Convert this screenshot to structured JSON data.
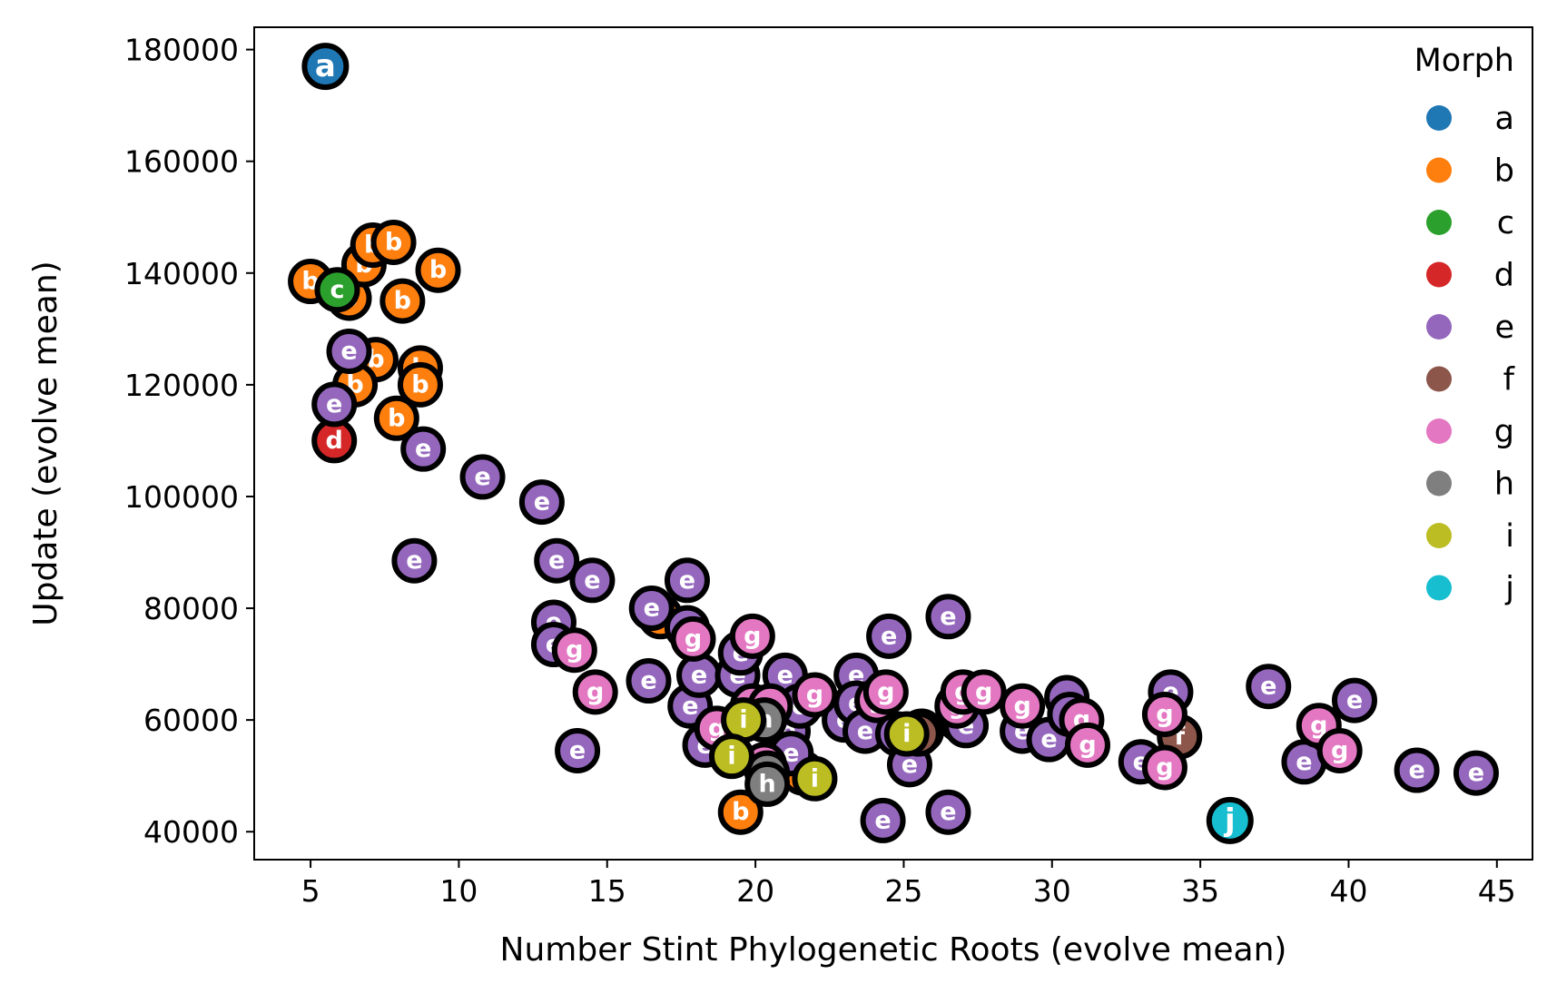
{
  "chart_data": {
    "type": "scatter",
    "xlabel": "Number Stint Phylogenetic Roots (evolve mean)",
    "ylabel": "Update (evolve mean)",
    "xlim": [
      3.1,
      46.2
    ],
    "ylim": [
      35000,
      184000
    ],
    "xticks": [
      5,
      10,
      15,
      20,
      25,
      30,
      35,
      40,
      45
    ],
    "yticks": [
      40000,
      60000,
      80000,
      100000,
      120000,
      140000,
      160000,
      180000
    ],
    "xtick_labels": [
      "5",
      "10",
      "15",
      "20",
      "25",
      "30",
      "35",
      "40",
      "45"
    ],
    "ytick_labels": [
      "40000",
      "60000",
      "80000",
      "100000",
      "120000",
      "140000",
      "160000",
      "180000"
    ],
    "legend": {
      "title": "Morph",
      "placement": "top-right",
      "entries": [
        {
          "label": "a",
          "color": "#1f77b4"
        },
        {
          "label": "b",
          "color": "#ff7f0e"
        },
        {
          "label": "c",
          "color": "#2ca02c"
        },
        {
          "label": "d",
          "color": "#d62728"
        },
        {
          "label": "e",
          "color": "#9467bd"
        },
        {
          "label": "f",
          "color": "#8c564b"
        },
        {
          "label": "g",
          "color": "#e377c2"
        },
        {
          "label": "h",
          "color": "#7f7f7f"
        },
        {
          "label": "i",
          "color": "#bcbd22"
        },
        {
          "label": "j",
          "color": "#17becf"
        }
      ]
    },
    "grid": false,
    "points": [
      {
        "x": 5.5,
        "y": 177000,
        "morph": "a"
      },
      {
        "x": 5.0,
        "y": 138500,
        "morph": "b"
      },
      {
        "x": 6.3,
        "y": 135500,
        "morph": "b"
      },
      {
        "x": 6.8,
        "y": 141500,
        "morph": "b"
      },
      {
        "x": 7.1,
        "y": 145000,
        "morph": "b"
      },
      {
        "x": 7.8,
        "y": 145500,
        "morph": "b"
      },
      {
        "x": 9.3,
        "y": 140500,
        "morph": "b"
      },
      {
        "x": 8.1,
        "y": 135000,
        "morph": "b"
      },
      {
        "x": 7.2,
        "y": 124500,
        "morph": "b"
      },
      {
        "x": 8.7,
        "y": 123000,
        "morph": "b"
      },
      {
        "x": 8.7,
        "y": 120000,
        "morph": "b"
      },
      {
        "x": 6.5,
        "y": 120000,
        "morph": "b"
      },
      {
        "x": 7.9,
        "y": 114000,
        "morph": "b"
      },
      {
        "x": 16.8,
        "y": 78500,
        "morph": "b"
      },
      {
        "x": 19.5,
        "y": 43500,
        "morph": "b"
      },
      {
        "x": 21.6,
        "y": 50500,
        "morph": "b"
      },
      {
        "x": 5.9,
        "y": 137000,
        "morph": "c"
      },
      {
        "x": 5.8,
        "y": 110000,
        "morph": "d"
      },
      {
        "x": 6.3,
        "y": 126000,
        "morph": "e"
      },
      {
        "x": 5.8,
        "y": 116500,
        "morph": "e"
      },
      {
        "x": 8.8,
        "y": 108500,
        "morph": "e"
      },
      {
        "x": 10.8,
        "y": 103500,
        "morph": "e"
      },
      {
        "x": 8.5,
        "y": 88500,
        "morph": "e"
      },
      {
        "x": 12.8,
        "y": 99000,
        "morph": "e"
      },
      {
        "x": 13.3,
        "y": 88500,
        "morph": "e"
      },
      {
        "x": 14.5,
        "y": 85000,
        "morph": "e"
      },
      {
        "x": 13.2,
        "y": 77500,
        "morph": "e"
      },
      {
        "x": 13.2,
        "y": 73500,
        "morph": "e"
      },
      {
        "x": 14.0,
        "y": 54500,
        "morph": "e"
      },
      {
        "x": 16.4,
        "y": 67000,
        "morph": "e"
      },
      {
        "x": 16.5,
        "y": 80000,
        "morph": "e"
      },
      {
        "x": 17.7,
        "y": 85000,
        "morph": "e"
      },
      {
        "x": 17.7,
        "y": 76500,
        "morph": "e"
      },
      {
        "x": 17.8,
        "y": 62500,
        "morph": "e"
      },
      {
        "x": 18.1,
        "y": 68000,
        "morph": "e"
      },
      {
        "x": 18.3,
        "y": 55500,
        "morph": "e"
      },
      {
        "x": 19.4,
        "y": 68000,
        "morph": "e"
      },
      {
        "x": 19.5,
        "y": 72000,
        "morph": "e"
      },
      {
        "x": 21.0,
        "y": 68000,
        "morph": "e"
      },
      {
        "x": 21.1,
        "y": 58000,
        "morph": "e"
      },
      {
        "x": 21.5,
        "y": 62500,
        "morph": "e"
      },
      {
        "x": 21.2,
        "y": 54000,
        "morph": "e"
      },
      {
        "x": 23.0,
        "y": 60000,
        "morph": "e"
      },
      {
        "x": 23.4,
        "y": 68000,
        "morph": "e"
      },
      {
        "x": 23.4,
        "y": 63000,
        "morph": "e"
      },
      {
        "x": 23.7,
        "y": 58000,
        "morph": "e"
      },
      {
        "x": 24.3,
        "y": 42000,
        "morph": "e"
      },
      {
        "x": 24.5,
        "y": 75000,
        "morph": "e"
      },
      {
        "x": 24.8,
        "y": 57500,
        "morph": "e"
      },
      {
        "x": 25.2,
        "y": 52000,
        "morph": "e"
      },
      {
        "x": 25.6,
        "y": 58000,
        "morph": "e"
      },
      {
        "x": 26.5,
        "y": 78500,
        "morph": "e"
      },
      {
        "x": 26.5,
        "y": 43500,
        "morph": "e"
      },
      {
        "x": 26.9,
        "y": 60000,
        "morph": "e"
      },
      {
        "x": 27.1,
        "y": 59000,
        "morph": "e"
      },
      {
        "x": 29.0,
        "y": 58000,
        "morph": "e"
      },
      {
        "x": 29.9,
        "y": 56500,
        "morph": "e"
      },
      {
        "x": 30.5,
        "y": 64000,
        "morph": "e"
      },
      {
        "x": 30.6,
        "y": 61000,
        "morph": "e"
      },
      {
        "x": 33.0,
        "y": 52500,
        "morph": "e"
      },
      {
        "x": 34.0,
        "y": 65000,
        "morph": "e"
      },
      {
        "x": 37.3,
        "y": 66000,
        "morph": "e"
      },
      {
        "x": 38.5,
        "y": 52500,
        "morph": "e"
      },
      {
        "x": 40.2,
        "y": 63500,
        "morph": "e"
      },
      {
        "x": 42.3,
        "y": 51000,
        "morph": "e"
      },
      {
        "x": 44.3,
        "y": 50500,
        "morph": "e"
      },
      {
        "x": 34.3,
        "y": 57000,
        "morph": "f"
      },
      {
        "x": 25.5,
        "y": 57500,
        "morph": "f"
      },
      {
        "x": 13.9,
        "y": 72500,
        "morph": "g"
      },
      {
        "x": 14.6,
        "y": 65000,
        "morph": "g"
      },
      {
        "x": 17.9,
        "y": 74500,
        "morph": "g"
      },
      {
        "x": 18.7,
        "y": 58500,
        "morph": "g"
      },
      {
        "x": 19.9,
        "y": 75000,
        "morph": "g"
      },
      {
        "x": 19.9,
        "y": 62500,
        "morph": "g"
      },
      {
        "x": 20.5,
        "y": 62500,
        "morph": "g"
      },
      {
        "x": 20.3,
        "y": 52000,
        "morph": "g"
      },
      {
        "x": 22.0,
        "y": 64500,
        "morph": "g"
      },
      {
        "x": 24.1,
        "y": 63500,
        "morph": "g"
      },
      {
        "x": 24.4,
        "y": 65000,
        "morph": "g"
      },
      {
        "x": 26.8,
        "y": 62500,
        "morph": "g"
      },
      {
        "x": 27.0,
        "y": 65000,
        "morph": "g"
      },
      {
        "x": 27.7,
        "y": 65000,
        "morph": "g"
      },
      {
        "x": 29.0,
        "y": 62500,
        "morph": "g"
      },
      {
        "x": 31.0,
        "y": 60000,
        "morph": "g"
      },
      {
        "x": 31.2,
        "y": 55500,
        "morph": "g"
      },
      {
        "x": 33.8,
        "y": 61000,
        "morph": "g"
      },
      {
        "x": 33.8,
        "y": 51500,
        "morph": "g"
      },
      {
        "x": 39.0,
        "y": 59000,
        "morph": "g"
      },
      {
        "x": 39.7,
        "y": 54500,
        "morph": "g"
      },
      {
        "x": 20.3,
        "y": 60000,
        "morph": "h"
      },
      {
        "x": 20.4,
        "y": 50500,
        "morph": "h"
      },
      {
        "x": 20.4,
        "y": 48500,
        "morph": "h"
      },
      {
        "x": 19.6,
        "y": 60000,
        "morph": "i"
      },
      {
        "x": 19.2,
        "y": 53500,
        "morph": "i"
      },
      {
        "x": 22.0,
        "y": 49500,
        "morph": "i"
      },
      {
        "x": 25.1,
        "y": 57500,
        "morph": "i"
      },
      {
        "x": 36.0,
        "y": 42000,
        "morph": "j"
      }
    ]
  }
}
